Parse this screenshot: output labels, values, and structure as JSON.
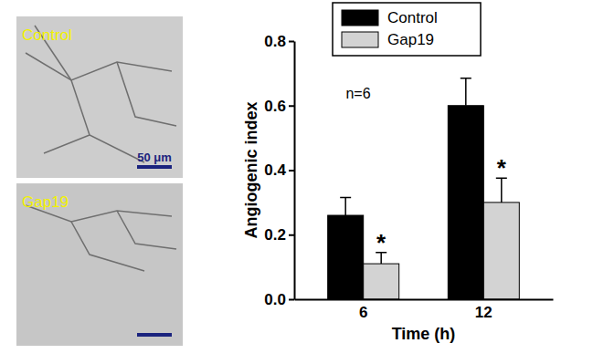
{
  "images": [
    {
      "label": "Control",
      "scale_bar_label": "50 μm"
    },
    {
      "label": "Gap19"
    }
  ],
  "chart_data": {
    "type": "bar",
    "x_label": "Time (h)",
    "y_label": "Angiogenic index",
    "categories": [
      "6",
      "12"
    ],
    "series": [
      {
        "name": "Control",
        "color": "#000000",
        "values": [
          0.26,
          0.6
        ],
        "errors": [
          0.055,
          0.085
        ]
      },
      {
        "name": "Gap19",
        "color": "#d3d3d3",
        "values": [
          0.11,
          0.3
        ],
        "errors": [
          0.035,
          0.075
        ],
        "significance": [
          "*",
          "*"
        ]
      }
    ],
    "ylim": [
      0,
      0.8
    ],
    "yticks": [
      {
        "value": 0,
        "label": "0.0"
      },
      0.2,
      0.4,
      0.6,
      0.8
    ],
    "annotations": [
      "n=6"
    ],
    "legend": "top"
  }
}
